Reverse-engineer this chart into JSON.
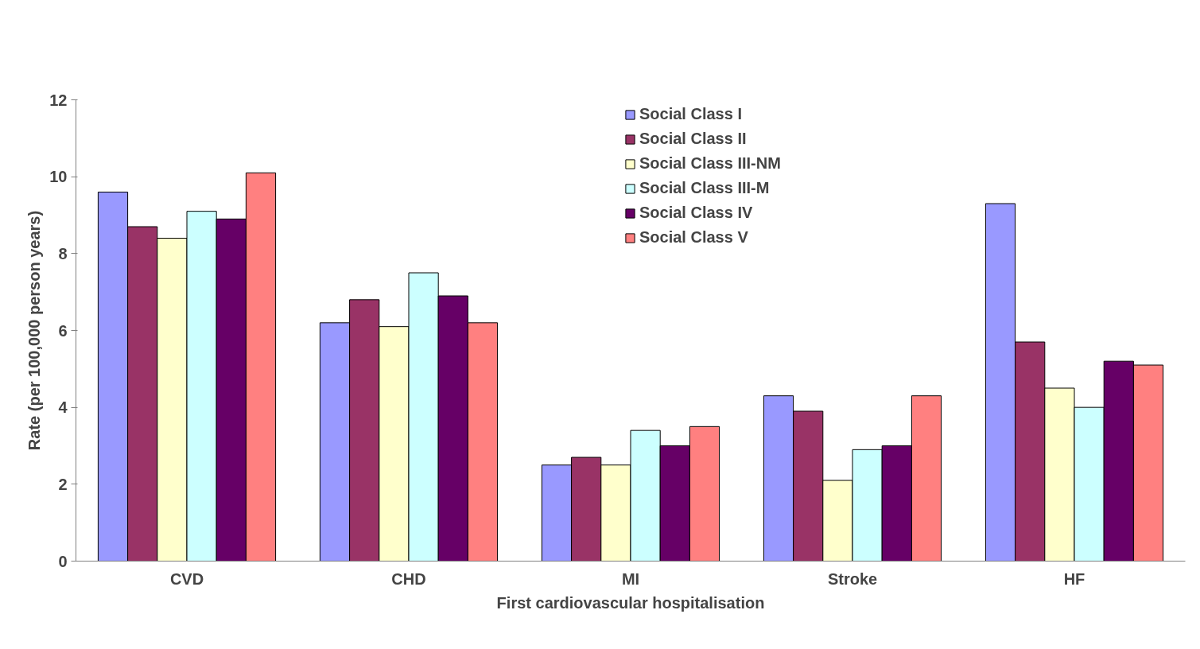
{
  "chart_data": {
    "type": "bar",
    "xlabel": "First cardiovascular hospitalisation",
    "ylabel": "Rate (per 100,000 person years)",
    "categories": [
      "CVD",
      "CHD",
      "MI",
      "Stroke",
      "HF"
    ],
    "series": [
      {
        "name": "Social Class I",
        "color": "#9999ff",
        "values": [
          9.6,
          6.2,
          2.5,
          4.3,
          9.3
        ]
      },
      {
        "name": "Social Class II",
        "color": "#993366",
        "values": [
          8.7,
          6.8,
          2.7,
          3.9,
          5.7
        ]
      },
      {
        "name": "Social Class III-NM",
        "color": "#ffffcc",
        "values": [
          8.4,
          6.1,
          2.5,
          2.1,
          4.5
        ]
      },
      {
        "name": "Social Class III-M",
        "color": "#ccffff",
        "values": [
          9.1,
          7.5,
          3.4,
          2.9,
          4.0
        ]
      },
      {
        "name": "Social Class IV",
        "color": "#660066",
        "values": [
          8.9,
          6.9,
          3.0,
          3.0,
          5.2
        ]
      },
      {
        "name": "Social Class V",
        "color": "#ff8080",
        "values": [
          10.1,
          6.2,
          3.5,
          4.3,
          5.1
        ]
      }
    ],
    "ylim": [
      0,
      12
    ],
    "yticks": [
      0,
      2,
      4,
      6,
      8,
      10,
      12
    ],
    "grid": false,
    "legend": "top"
  }
}
